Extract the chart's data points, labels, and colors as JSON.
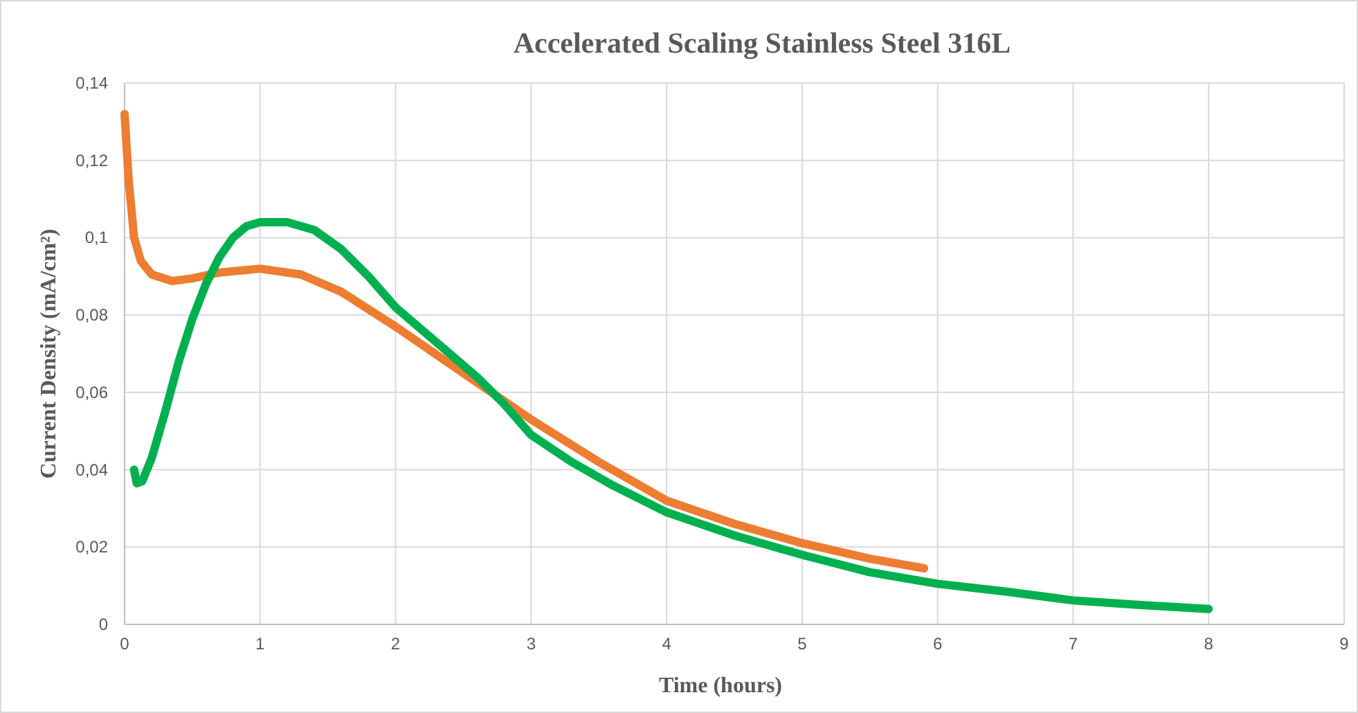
{
  "chart_data": {
    "type": "line",
    "title": "Accelerated Scaling Stainless Steel 316L",
    "xlabel": "Time  (hours)",
    "ylabel": "Current  Density  (mA/cm²)",
    "xlim": [
      0,
      9
    ],
    "xticks": [
      0,
      1,
      2,
      3,
      4,
      5,
      6,
      7,
      8,
      9
    ],
    "ylim": [
      0,
      0.14
    ],
    "yticks": [
      {
        "value": 0,
        "label": "0"
      },
      {
        "value": 0.02,
        "label": "0,02"
      },
      {
        "value": 0.04,
        "label": "0,04"
      },
      {
        "value": 0.06,
        "label": "0,06"
      },
      {
        "value": 0.08,
        "label": "0,08"
      },
      {
        "value": 0.1,
        "label": "0,1"
      },
      {
        "value": 0.12,
        "label": "0,12"
      },
      {
        "value": 0.14,
        "label": "0,14"
      }
    ],
    "grid": true,
    "marker": "none",
    "line_style": "solid",
    "series": [
      {
        "color": "#ed7d31",
        "x": [
          0,
          0.03,
          0.07,
          0.12,
          0.2,
          0.35,
          0.5,
          0.7,
          1.0,
          1.3,
          1.6,
          2.0,
          2.5,
          3.0,
          3.5,
          4.0,
          4.5,
          5.0,
          5.5,
          5.9
        ],
        "values": [
          0.132,
          0.115,
          0.1,
          0.094,
          0.0905,
          0.0888,
          0.0895,
          0.091,
          0.092,
          0.0905,
          0.086,
          0.077,
          0.065,
          0.053,
          0.042,
          0.032,
          0.026,
          0.021,
          0.017,
          0.0145
        ]
      },
      {
        "color": "#00b050",
        "x": [
          0.07,
          0.09,
          0.13,
          0.2,
          0.3,
          0.4,
          0.5,
          0.6,
          0.7,
          0.8,
          0.9,
          1.0,
          1.2,
          1.4,
          1.6,
          1.8,
          2.0,
          2.3,
          2.6,
          2.8,
          3.0,
          3.3,
          3.6,
          4.0,
          4.5,
          5.0,
          5.5,
          6.0,
          6.5,
          7.0,
          7.5,
          8.0
        ],
        "values": [
          0.04,
          0.0365,
          0.037,
          0.043,
          0.055,
          0.068,
          0.079,
          0.088,
          0.095,
          0.1,
          0.103,
          0.104,
          0.104,
          0.102,
          0.097,
          0.09,
          0.082,
          0.073,
          0.064,
          0.057,
          0.049,
          0.042,
          0.036,
          0.029,
          0.023,
          0.018,
          0.0135,
          0.0105,
          0.0085,
          0.0062,
          0.005,
          0.004
        ]
      }
    ]
  }
}
